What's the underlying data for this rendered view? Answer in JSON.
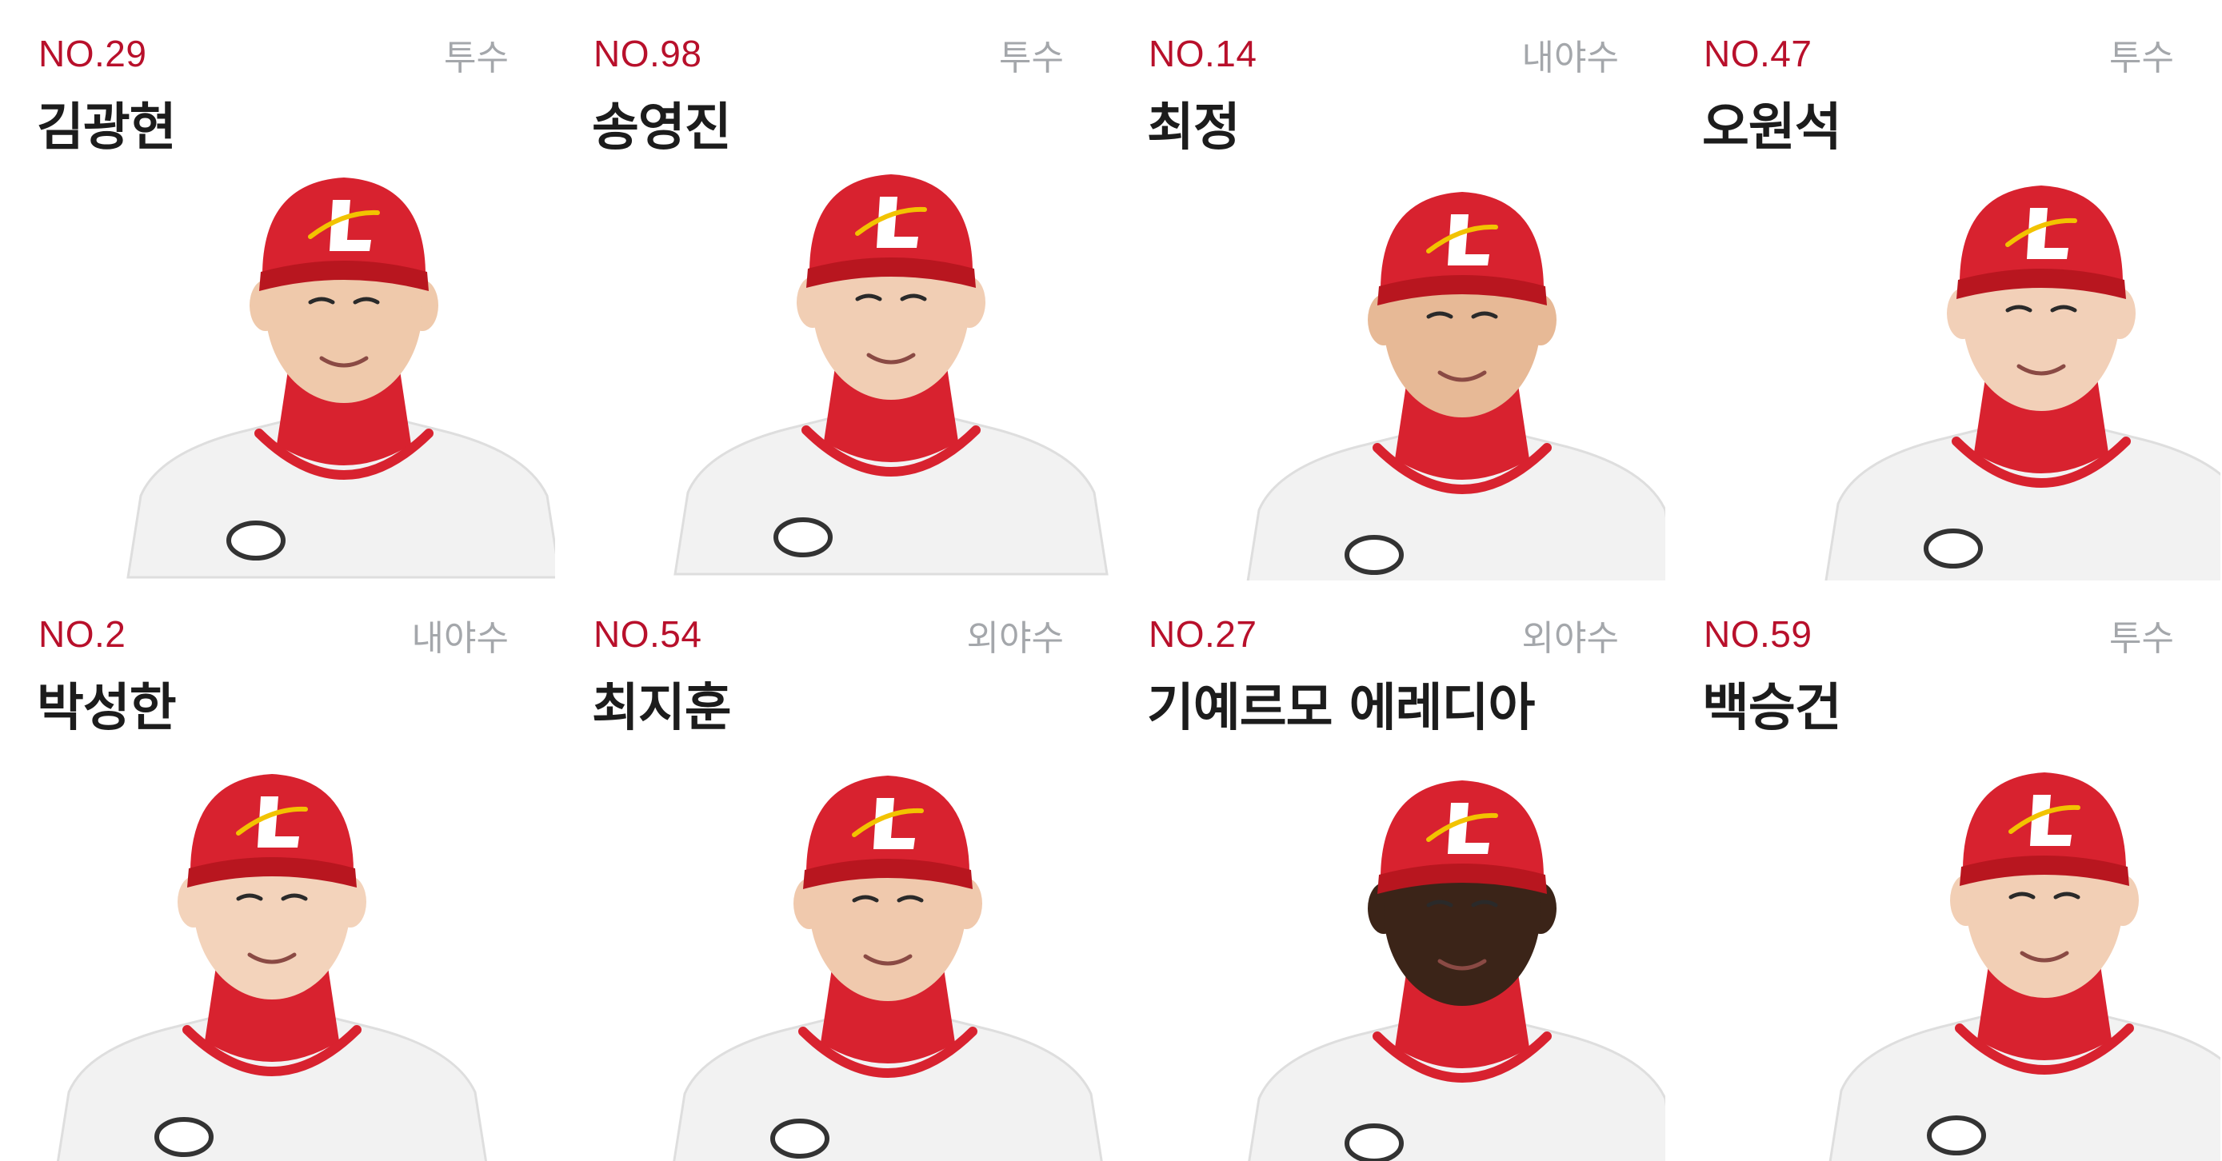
{
  "players": [
    {
      "number": "NO.29",
      "position": "투수",
      "name": "김광현"
    },
    {
      "number": "NO.98",
      "position": "투수",
      "name": "송영진"
    },
    {
      "number": "NO.14",
      "position": "내야수",
      "name": "최정"
    },
    {
      "number": "NO.47",
      "position": "투수",
      "name": "오원석"
    },
    {
      "number": "NO.2",
      "position": "내야수",
      "name": "박성한"
    },
    {
      "number": "NO.54",
      "position": "외야수",
      "name": "최지훈"
    },
    {
      "number": "NO.27",
      "position": "외야수",
      "name": "기예르모 에레디아"
    },
    {
      "number": "NO.59",
      "position": "투수",
      "name": "백승건"
    }
  ],
  "colors": {
    "accent": "#b8102b",
    "cap": "#d8222f",
    "muted": "#a4a7ab",
    "text": "#1c1c1c"
  }
}
